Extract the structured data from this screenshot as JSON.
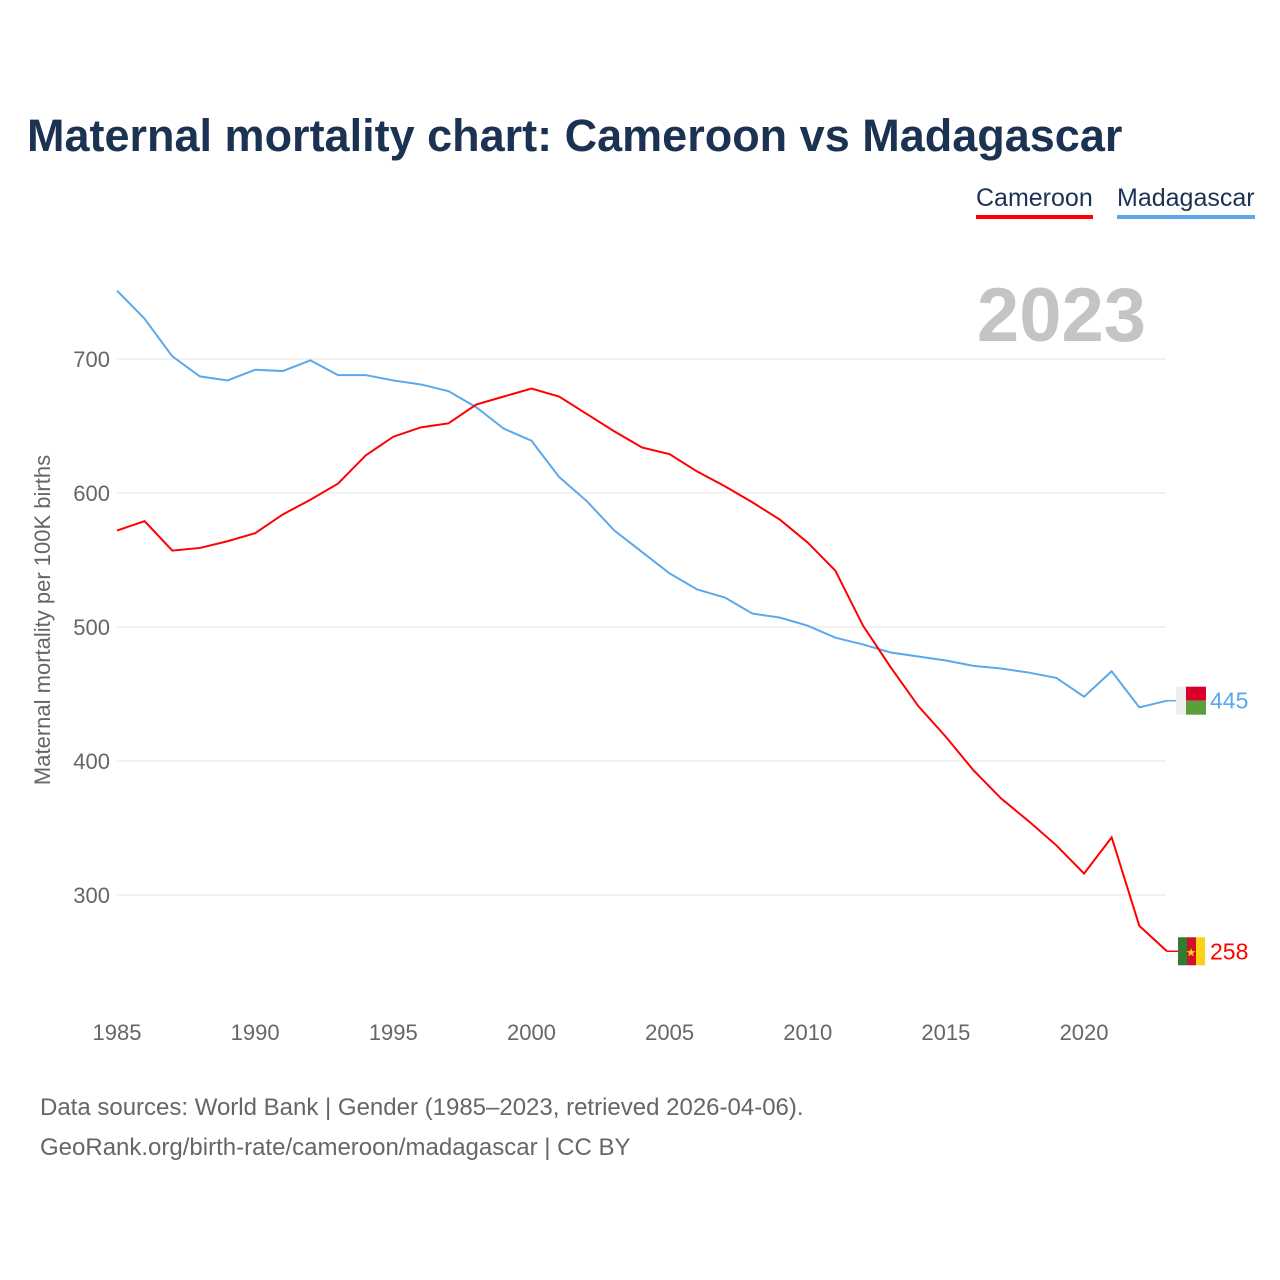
{
  "title": "Maternal mortality chart: Cameroon vs Madagascar",
  "year_label": "2023",
  "footer": {
    "line1": "Data sources: World Bank | Gender (1985–2023, retrieved 2026-04-06).",
    "line2": "GeoRank.org/birth-rate/cameroon/madagascar | CC BY"
  },
  "chart_data": {
    "type": "line",
    "title": "Maternal mortality chart: Cameroon vs Madagascar",
    "xlabel": "",
    "ylabel": "Maternal mortality per 100K births",
    "xlim": [
      1985,
      2023
    ],
    "ylim": [
      240,
      760
    ],
    "xticks": [
      1985,
      1990,
      1995,
      2000,
      2005,
      2010,
      2015,
      2020
    ],
    "yticks": [
      300,
      400,
      500,
      600,
      700
    ],
    "grid": true,
    "legend_placement": "top-right",
    "x": [
      1985,
      1986,
      1987,
      1988,
      1989,
      1990,
      1991,
      1992,
      1993,
      1994,
      1995,
      1996,
      1997,
      1998,
      1999,
      2000,
      2001,
      2002,
      2003,
      2004,
      2005,
      2006,
      2007,
      2008,
      2009,
      2010,
      2011,
      2012,
      2013,
      2014,
      2015,
      2016,
      2017,
      2018,
      2019,
      2020,
      2021,
      2022,
      2023
    ],
    "series": [
      {
        "name": "Cameroon",
        "color": "#ff0000",
        "end_label": "258",
        "values": [
          572,
          579,
          557,
          559,
          564,
          570,
          584,
          595,
          607,
          628,
          642,
          649,
          652,
          666,
          672,
          678,
          672,
          659,
          646,
          634,
          629,
          616,
          605,
          593,
          580,
          563,
          542,
          501,
          470,
          441,
          418,
          393,
          372,
          355,
          337,
          316,
          343,
          277,
          258
        ]
      },
      {
        "name": "Madagascar",
        "color": "#5ca8ec",
        "end_label": "445",
        "values": [
          751,
          730,
          702,
          687,
          684,
          692,
          691,
          699,
          688,
          688,
          684,
          681,
          676,
          664,
          648,
          639,
          612,
          594,
          572,
          556,
          540,
          528,
          522,
          510,
          507,
          501,
          492,
          487,
          481,
          478,
          475,
          471,
          469,
          466,
          462,
          448,
          467,
          440,
          445
        ]
      }
    ]
  }
}
